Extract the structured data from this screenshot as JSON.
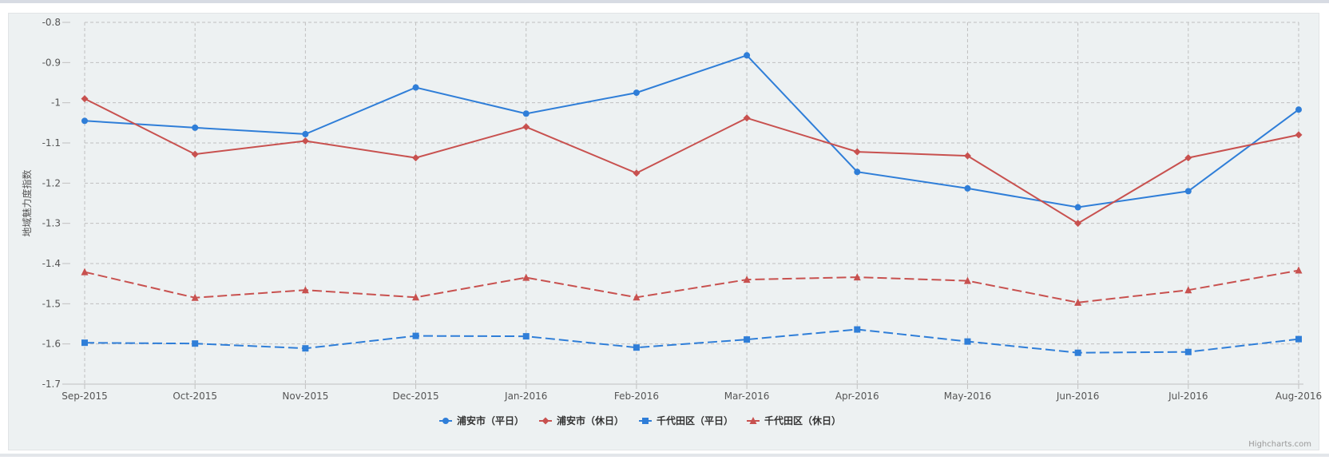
{
  "chart_data": {
    "type": "line",
    "title": "",
    "xlabel": "",
    "ylabel": "地域魅力度指数",
    "categories": [
      "Sep-2015",
      "Oct-2015",
      "Nov-2015",
      "Dec-2015",
      "Jan-2016",
      "Feb-2016",
      "Mar-2016",
      "Apr-2016",
      "May-2016",
      "Jun-2016",
      "Jul-2016",
      "Aug-2016"
    ],
    "ylim": [
      -1.7,
      -0.8
    ],
    "yticks": [
      "-0.8",
      "-0.9",
      "-1",
      "-1.1",
      "-1.2",
      "-1.3",
      "-1.4",
      "-1.5",
      "-1.6",
      "-1.7"
    ],
    "grid": true,
    "legend": "bottom-center",
    "series": [
      {
        "name": "浦安市（平日）",
        "color": "#2f7ed8",
        "dash": "solid",
        "marker": "circle",
        "values": [
          -1.045,
          -1.062,
          -1.078,
          -0.962,
          -1.027,
          -0.975,
          -0.882,
          -1.172,
          -1.213,
          -1.26,
          -1.22,
          -1.017
        ]
      },
      {
        "name": "浦安市（休日）",
        "color": "#c8514f",
        "dash": "solid",
        "marker": "diamond",
        "values": [
          -0.99,
          -1.128,
          -1.095,
          -1.137,
          -1.06,
          -1.175,
          -1.038,
          -1.122,
          -1.132,
          -1.3,
          -1.137,
          -1.08
        ]
      },
      {
        "name": "千代田区（平日）",
        "color": "#2f7ed8",
        "dash": "dashed",
        "marker": "square",
        "values": [
          -1.597,
          -1.599,
          -1.611,
          -1.58,
          -1.581,
          -1.609,
          -1.589,
          -1.564,
          -1.594,
          -1.622,
          -1.62,
          -1.588
        ]
      },
      {
        "name": "千代田区（休日）",
        "color": "#c8514f",
        "dash": "dashed",
        "marker": "triangle",
        "values": [
          -1.421,
          -1.485,
          -1.466,
          -1.484,
          -1.435,
          -1.484,
          -1.44,
          -1.434,
          -1.443,
          -1.497,
          -1.466,
          -1.417
        ]
      }
    ],
    "credits": "Highcharts.com"
  }
}
